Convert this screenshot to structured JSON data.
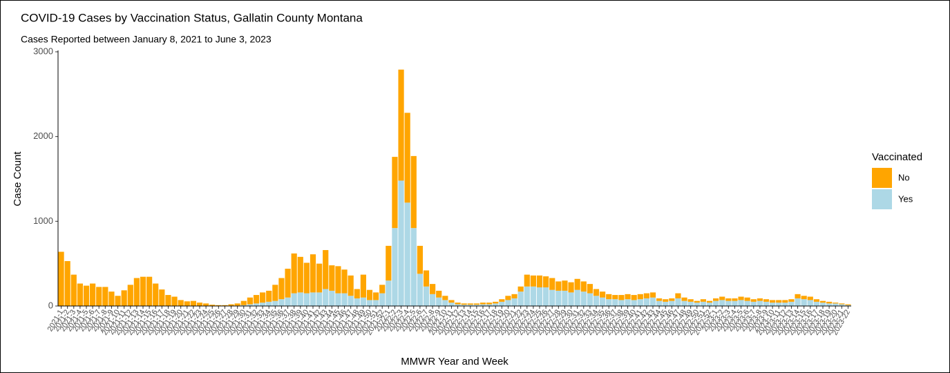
{
  "chart_data": {
    "type": "stacked_bar",
    "title": "COVID-19 Cases by Vaccination Status, Gallatin County Montana",
    "subtitle": "Cases Reported between January 8, 2021 to June 3, 2023",
    "x_label": "MMWR Year and Week",
    "y_label": "Case Count",
    "legend_title": "Vaccinated",
    "legend_position": "right",
    "categories": [
      "2021-1",
      "2021-2",
      "2021-3",
      "2021-4",
      "2021-5",
      "2021-6",
      "2021-7",
      "2021-8",
      "2021-9",
      "2021-10",
      "2021-11",
      "2021-12",
      "2021-13",
      "2021-14",
      "2021-15",
      "2021-16",
      "2021-17",
      "2021-18",
      "2021-19",
      "2021-20",
      "2021-21",
      "2021-22",
      "2021-23",
      "2021-24",
      "2021-25",
      "2021-26",
      "2021-27",
      "2021-28",
      "2021-29",
      "2021-30",
      "2021-31",
      "2021-32",
      "2021-33",
      "2021-34",
      "2021-35",
      "2021-36",
      "2021-37",
      "2021-38",
      "2021-39",
      "2021-40",
      "2021-41",
      "2021-42",
      "2021-43",
      "2021-44",
      "2021-45",
      "2021-46",
      "2021-47",
      "2021-48",
      "2021-49",
      "2021-50",
      "2021-51",
      "2021-52",
      "2022-1",
      "2022-2",
      "2022-3",
      "2022-4",
      "2022-5",
      "2022-6",
      "2022-7",
      "2022-8",
      "2022-9",
      "2022-10",
      "2022-11",
      "2022-12",
      "2022-13",
      "2022-14",
      "2022-15",
      "2022-16",
      "2022-17",
      "2022-18",
      "2022-19",
      "2022-20",
      "2022-21",
      "2022-22",
      "2022-23",
      "2022-24",
      "2022-25",
      "2022-26",
      "2022-27",
      "2022-28",
      "2022-29",
      "2022-30",
      "2022-31",
      "2022-32",
      "2022-33",
      "2022-34",
      "2022-35",
      "2022-36",
      "2022-37",
      "2022-38",
      "2022-39",
      "2022-40",
      "2022-41",
      "2022-42",
      "2022-43",
      "2022-44",
      "2022-45",
      "2022-46",
      "2022-47",
      "2022-48",
      "2022-49",
      "2022-50",
      "2022-51",
      "2022-52",
      "2023-1",
      "2023-2",
      "2023-3",
      "2023-4",
      "2023-5",
      "2023-6",
      "2023-7",
      "2023-8",
      "2023-9",
      "2023-10",
      "2023-11",
      "2023-12",
      "2023-13",
      "2023-14",
      "2023-15",
      "2023-16",
      "2023-17",
      "2023-18",
      "2023-19",
      "2023-20",
      "2023-21",
      "2023-22"
    ],
    "series": [
      {
        "name": "No",
        "color": "#ffa500",
        "values": [
          640,
          530,
          370,
          265,
          240,
          265,
          225,
          225,
          170,
          120,
          185,
          250,
          330,
          345,
          345,
          265,
          195,
          130,
          110,
          70,
          55,
          60,
          40,
          30,
          15,
          10,
          10,
          20,
          25,
          50,
          80,
          100,
          120,
          130,
          190,
          250,
          340,
          470,
          420,
          360,
          450,
          340,
          460,
          300,
          320,
          280,
          240,
          110,
          270,
          120,
          90,
          100,
          410,
          840,
          1310,
          1060,
          850,
          330,
          190,
          120,
          80,
          50,
          30,
          20,
          15,
          15,
          15,
          20,
          20,
          20,
          30,
          50,
          50,
          60,
          140,
          130,
          140,
          130,
          140,
          110,
          120,
          120,
          130,
          120,
          110,
          80,
          70,
          60,
          50,
          60,
          60,
          60,
          60,
          60,
          60,
          30,
          30,
          30,
          60,
          40,
          30,
          20,
          30,
          20,
          30,
          40,
          30,
          30,
          40,
          40,
          30,
          30,
          30,
          30,
          30,
          30,
          30,
          50,
          40,
          40,
          30,
          20,
          20,
          10,
          10,
          10
        ]
      },
      {
        "name": "Yes",
        "color": "#add8e6",
        "values": [
          0,
          0,
          0,
          0,
          0,
          0,
          0,
          0,
          0,
          0,
          0,
          0,
          0,
          0,
          0,
          0,
          0,
          0,
          0,
          0,
          0,
          0,
          0,
          0,
          0,
          0,
          0,
          0,
          5,
          10,
          20,
          30,
          40,
          50,
          60,
          80,
          100,
          150,
          160,
          150,
          160,
          160,
          200,
          180,
          150,
          150,
          120,
          90,
          100,
          70,
          70,
          150,
          300,
          920,
          1480,
          1220,
          920,
          380,
          230,
          140,
          100,
          70,
          40,
          20,
          15,
          15,
          15,
          20,
          20,
          30,
          50,
          70,
          90,
          170,
          230,
          230,
          220,
          220,
          190,
          180,
          180,
          160,
          190,
          170,
          150,
          120,
          100,
          80,
          80,
          70,
          80,
          70,
          80,
          90,
          100,
          60,
          50,
          60,
          90,
          60,
          50,
          40,
          50,
          40,
          60,
          70,
          60,
          60,
          70,
          60,
          50,
          60,
          50,
          40,
          40,
          40,
          50,
          90,
          80,
          70,
          50,
          40,
          30,
          30,
          20,
          10
        ]
      }
    ],
    "ylim": [
      0,
      3000
    ],
    "yticks": [
      0,
      1000,
      2000,
      3000
    ],
    "grid": false
  }
}
